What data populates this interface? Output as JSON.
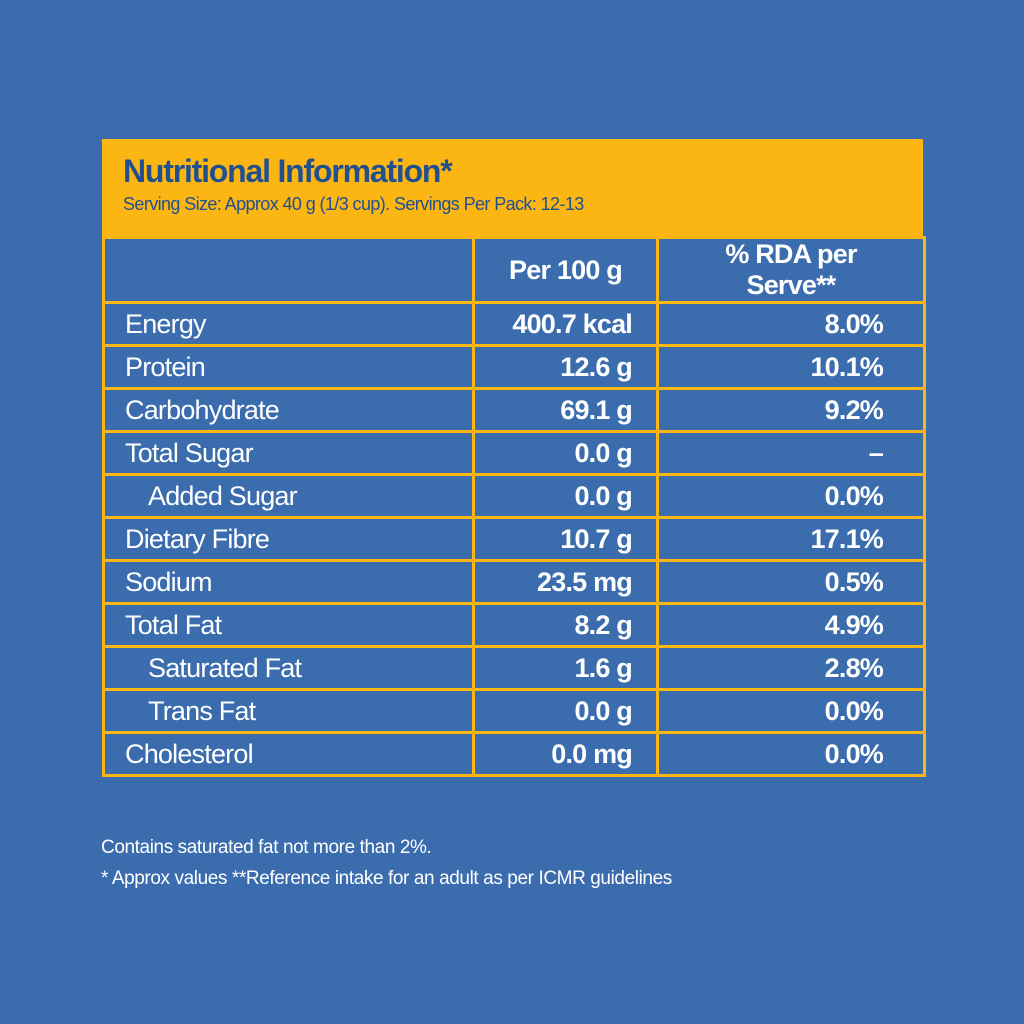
{
  "header": {
    "title": "Nutritional Information*",
    "serving": "Serving Size: Approx 40 g (1/3 cup). Servings Per Pack: 12-13"
  },
  "table": {
    "columns": [
      "",
      "Per 100 g",
      "% RDA per Serve**"
    ],
    "rows": [
      {
        "label": "Energy",
        "per100": "400.7 kcal",
        "rda": "8.0%",
        "indent": false
      },
      {
        "label": "Protein",
        "per100": "12.6 g",
        "rda": "10.1%",
        "indent": false
      },
      {
        "label": "Carbohydrate",
        "per100": "69.1 g",
        "rda": "9.2%",
        "indent": false
      },
      {
        "label": "Total Sugar",
        "per100": "0.0 g",
        "rda": "–",
        "indent": false
      },
      {
        "label": "Added Sugar",
        "per100": "0.0 g",
        "rda": "0.0%",
        "indent": true
      },
      {
        "label": "Dietary Fibre",
        "per100": "10.7 g",
        "rda": "17.1%",
        "indent": false
      },
      {
        "label": "Sodium",
        "per100": "23.5 mg",
        "rda": "0.5%",
        "indent": false
      },
      {
        "label": "Total Fat",
        "per100": "8.2 g",
        "rda": "4.9%",
        "indent": false
      },
      {
        "label": "Saturated Fat",
        "per100": "1.6 g",
        "rda": "2.8%",
        "indent": true
      },
      {
        "label": "Trans Fat",
        "per100": "0.0 g",
        "rda": "0.0%",
        "indent": true
      },
      {
        "label": "Cholesterol",
        "per100": "0.0 mg",
        "rda": "0.0%",
        "indent": false
      }
    ]
  },
  "footnotes": [
    "Contains saturated fat not more than 2%.",
    "* Approx values **Reference intake for an adult as per ICMR guidelines"
  ],
  "colors": {
    "background": "#3a6cae",
    "accent": "#fbb614",
    "title": "#22508f"
  }
}
